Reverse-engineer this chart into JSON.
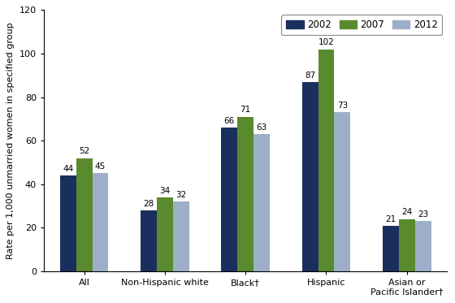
{
  "categories": [
    "All",
    "Non-Hispanic white",
    "Black†",
    "Hispanic",
    "Asian or\nPacific Islander†"
  ],
  "years": [
    "2002",
    "2007",
    "2012"
  ],
  "values": {
    "2002": [
      44,
      28,
      66,
      87,
      21
    ],
    "2007": [
      52,
      34,
      71,
      102,
      24
    ],
    "2012": [
      45,
      32,
      63,
      73,
      23
    ]
  },
  "bar_colors": {
    "2002": "#1b2f5e",
    "2007": "#5a8a2e",
    "2012": "#9dafc8"
  },
  "ylabel": "Rate per 1,000 unmarried women in specified group",
  "ylim": [
    0,
    120
  ],
  "yticks": [
    0,
    20,
    40,
    60,
    80,
    100,
    120
  ],
  "legend_labels": [
    "2002",
    "2007",
    "2012"
  ],
  "bar_width": 0.2,
  "label_fontsize": 7.5,
  "axis_fontsize": 8,
  "tick_fontsize": 8,
  "legend_fontsize": 8.5,
  "ylabel_fontsize": 8
}
